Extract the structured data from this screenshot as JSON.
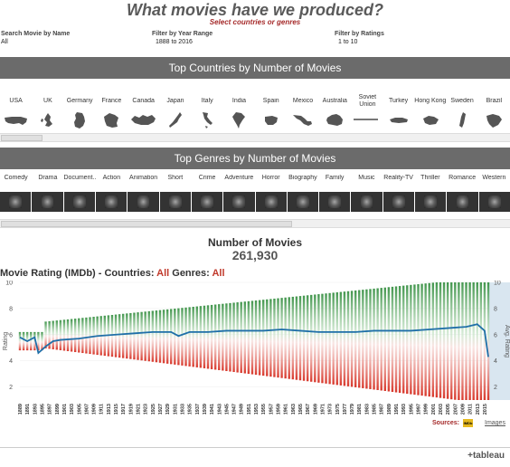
{
  "header": {
    "title": "What movies have we produced?",
    "subtitle": "Select countries or genres"
  },
  "filters": {
    "search": {
      "label": "Search Movie by Name",
      "value": "All"
    },
    "year": {
      "label": "Filter by Year Range",
      "value": "1888 to 2016"
    },
    "ratings": {
      "label": "Filter by Ratings",
      "value": "1 to 10"
    }
  },
  "countries_section": {
    "title": "Top Countries by Number of Movies",
    "items": [
      "USA",
      "UK",
      "Germany",
      "France",
      "Canada",
      "Japan",
      "Italy",
      "India",
      "Spain",
      "Mexico",
      "Australia",
      "Soviet Union",
      "Turkey",
      "Hong Kong",
      "Sweden",
      "Brazil"
    ]
  },
  "genres_section": {
    "title": "Top Genres by Number of Movies",
    "items": [
      "Comedy",
      "Drama",
      "Document...",
      "Action",
      "Animation",
      "Short",
      "Crime",
      "Adventure",
      "Horror",
      "Biography",
      "Family",
      "Music",
      "Reality-TV",
      "Thriller",
      "Romance",
      "Western"
    ]
  },
  "kpi": {
    "label": "Number of Movies",
    "value": "261,930"
  },
  "rating_chart": {
    "title_prefix": "Movie Rating (IMDb) - Countries: ",
    "countries_value": "All",
    "genres_label": " Genres: ",
    "genres_value": "All"
  },
  "footer": {
    "sources_label": "Sources:",
    "imdb_badge": "IMDb",
    "images_link": "Images",
    "brand": "+tableau"
  },
  "colors": {
    "band": "#6b6b6b",
    "accent_red": "#c0392b",
    "high_green": "#2e8b3a",
    "low_red": "#d62d20",
    "avg_line": "#1f6fa8",
    "right_axis_bg": "#d9e6f0"
  },
  "chart_data": {
    "type": "scatter",
    "title": "",
    "xlabel": "",
    "ylabel": "Rating",
    "y2label": "Avg. Rating",
    "ylim": [
      1,
      10
    ],
    "yticks": [
      2,
      4,
      6,
      8,
      10
    ],
    "y2ticks": [
      2,
      4,
      6,
      8,
      10
    ],
    "xlim": [
      1889,
      2016
    ],
    "x_tick_labels": [
      "1889",
      "1891",
      "1893",
      "1895",
      "1897",
      "1899",
      "1901",
      "1903",
      "1905",
      "1907",
      "1909",
      "1911",
      "1913",
      "1915",
      "1917",
      "1919",
      "1921",
      "1923",
      "1925",
      "1927",
      "1929",
      "1931",
      "1933",
      "1935",
      "1937",
      "1939",
      "1941",
      "1943",
      "1945",
      "1947",
      "1949",
      "1951",
      "1953",
      "1955",
      "1957",
      "1959",
      "1961",
      "1963",
      "1965",
      "1967",
      "1969",
      "1971",
      "1973",
      "1975",
      "1977",
      "1979",
      "1981",
      "1983",
      "1985",
      "1987",
      "1989",
      "1991",
      "1993",
      "1995",
      "1997",
      "1999",
      "2001",
      "2003",
      "2005",
      "2007",
      "2009",
      "2011",
      "2013",
      "2015"
    ],
    "avg_rating": {
      "name": "Avg. Rating",
      "points": [
        [
          1889,
          5.8
        ],
        [
          1891,
          5.5
        ],
        [
          1893,
          5.8
        ],
        [
          1894,
          4.6
        ],
        [
          1896,
          5.1
        ],
        [
          1898,
          5.5
        ],
        [
          1900,
          5.6
        ],
        [
          1905,
          5.7
        ],
        [
          1910,
          5.9
        ],
        [
          1915,
          6.0
        ],
        [
          1920,
          6.1
        ],
        [
          1925,
          6.2
        ],
        [
          1930,
          6.2
        ],
        [
          1932,
          5.9
        ],
        [
          1935,
          6.2
        ],
        [
          1940,
          6.2
        ],
        [
          1945,
          6.3
        ],
        [
          1950,
          6.3
        ],
        [
          1955,
          6.3
        ],
        [
          1960,
          6.4
        ],
        [
          1965,
          6.3
        ],
        [
          1970,
          6.2
        ],
        [
          1975,
          6.2
        ],
        [
          1980,
          6.2
        ],
        [
          1985,
          6.3
        ],
        [
          1990,
          6.3
        ],
        [
          1995,
          6.3
        ],
        [
          2000,
          6.4
        ],
        [
          2005,
          6.5
        ],
        [
          2010,
          6.6
        ],
        [
          2013,
          6.8
        ],
        [
          2015,
          6.3
        ],
        [
          2016,
          4.3
        ]
      ]
    }
  }
}
